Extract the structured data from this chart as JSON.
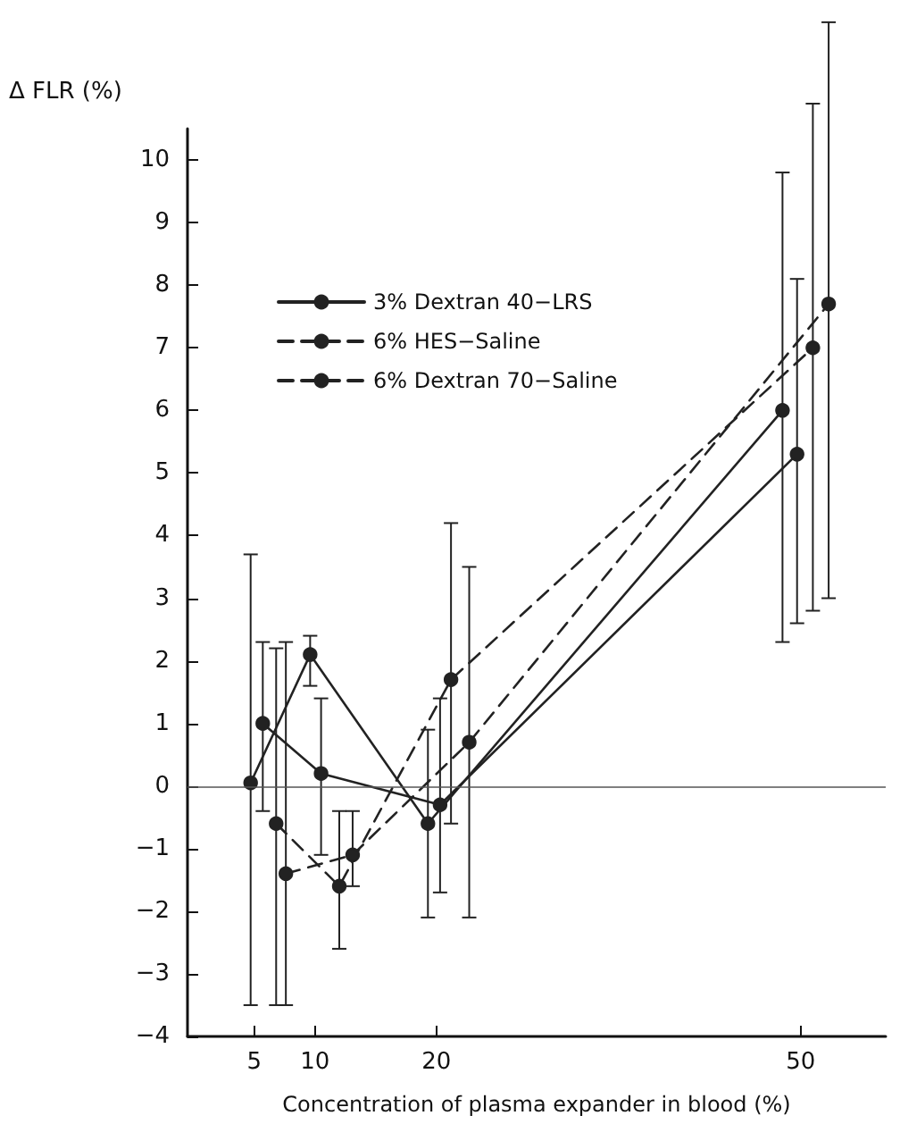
{
  "chart_data": {
    "type": "line",
    "ylabel": "Δ FLR (%)",
    "xlabel": "Concentration of plasma expander in blood (%)",
    "xlim": [
      -0.5,
      57
    ],
    "xticks": [
      5,
      10,
      20,
      50
    ],
    "ylim": [
      -4,
      10.5
    ],
    "yticks": [
      -4,
      -3,
      -2,
      -1,
      0,
      1,
      2,
      3,
      4,
      5,
      6,
      7,
      8,
      9,
      10
    ],
    "grid": false,
    "legend": "top left",
    "marker": "circle",
    "ref_lines": [
      {
        "axis": "y",
        "value": 0,
        "color": "#555555"
      }
    ],
    "series": [
      {
        "color": "#222222",
        "line_style": "solid",
        "x": [
          5.7,
          10.5,
          20.3,
          49.7
        ],
        "values": [
          1.0,
          0.2,
          -0.3,
          5.3
        ],
        "errors": [
          [
            -0.4,
            2.3
          ],
          [
            -1.1,
            1.4
          ],
          [
            -1.7,
            1.4
          ],
          [
            2.6,
            8.1
          ]
        ]
      },
      {
        "name": "3% Dextran 40−LRS",
        "color": "#222222",
        "line_style": "solid",
        "x": [
          4.7,
          9.6,
          19.3,
          48.5
        ],
        "values": [
          0.05,
          2.1,
          -0.6,
          6.0
        ],
        "errors": [
          [
            -3.5,
            3.7
          ],
          [
            1.6,
            2.4
          ],
          [
            -2.1,
            0.9
          ],
          [
            2.3,
            9.8
          ]
        ]
      },
      {
        "name": "6% HES−Saline",
        "color": "#222222",
        "line_style": "dashed",
        "x": [
          6.8,
          12.0,
          21.2,
          51.0
        ],
        "values": [
          -0.6,
          -1.6,
          1.7,
          7.0
        ],
        "errors": [
          [
            -3.5,
            2.2
          ],
          [
            -2.6,
            -0.4
          ],
          [
            -0.6,
            4.2
          ],
          [
            2.8,
            10.9
          ]
        ]
      },
      {
        "name": "6% Dextran 70−Saline",
        "color": "#222222",
        "line_style": "dashed",
        "x": [
          7.6,
          13.1,
          22.7,
          52.3
        ],
        "values": [
          -1.4,
          -1.1,
          0.7,
          7.7
        ],
        "errors": [
          [
            -3.5,
            2.3
          ],
          [
            -1.6,
            -0.4
          ],
          [
            -2.1,
            3.5
          ],
          [
            3.0,
            12.2
          ]
        ]
      }
    ]
  }
}
